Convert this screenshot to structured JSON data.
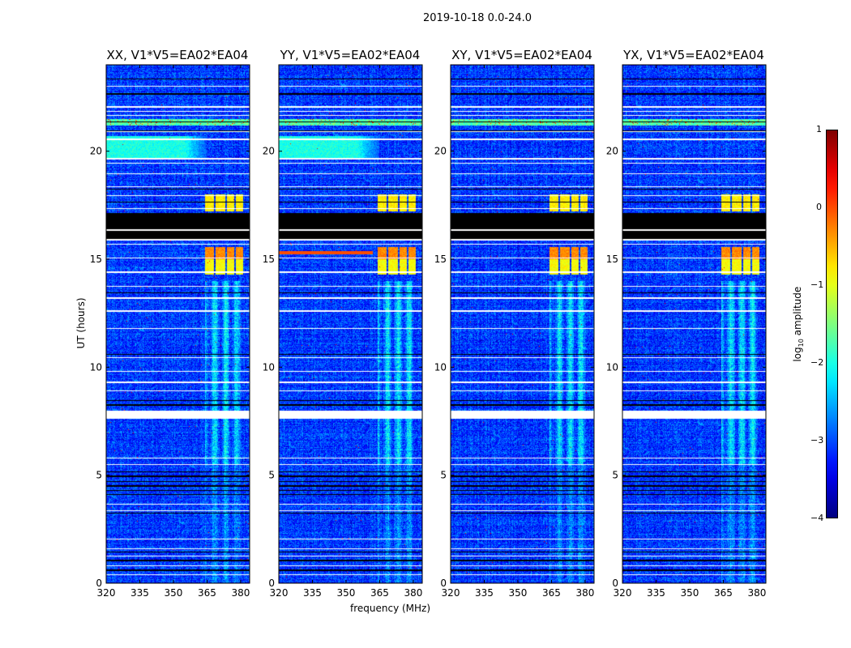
{
  "chart_data": {
    "type": "heatmap",
    "title": "2019-10-18 0.0-24.0",
    "xlabel": "frequency (MHz)",
    "ylabel": "UT (hours)",
    "xlim": [
      320,
      384
    ],
    "ylim": [
      0,
      24
    ],
    "xticks": [
      320,
      335,
      350,
      365,
      380
    ],
    "yticks": [
      0,
      5,
      10,
      15,
      20
    ],
    "panels": [
      {
        "title": "XX, V1*V5=EA02*EA04",
        "low_freq_band": true,
        "red_strip": false
      },
      {
        "title": "YY, V1*V5=EA02*EA04",
        "low_freq_band": true,
        "red_strip": true
      },
      {
        "title": "XY, V1*V5=EA02*EA04",
        "low_freq_band": false,
        "red_strip": false
      },
      {
        "title": "YX, V1*V5=EA02*EA04",
        "low_freq_band": false,
        "red_strip": false
      }
    ],
    "colorbar": {
      "label_main": "log",
      "label_sub": "10",
      "label_tail": " amplitude",
      "range": [
        -4,
        1
      ],
      "ticks": [
        "1",
        "0",
        "−1",
        "−2",
        "−3",
        "−4"
      ],
      "tick_values": [
        1,
        0,
        -1,
        -2,
        -3,
        -4
      ],
      "colormap": "jet"
    },
    "background_level": -3.1,
    "flagged_white_hours": [
      23.0,
      22.05,
      21.85,
      21.65,
      20.9,
      20.55,
      19.65,
      19.45,
      18.95,
      18.35,
      17.95,
      17.35,
      15.7,
      15.05,
      14.4,
      13.75,
      13.2,
      12.6,
      11.8,
      10.45,
      9.8,
      9.3,
      8.9,
      5.8,
      5.5,
      3.65,
      3.35,
      2.05,
      1.6,
      1.25,
      0.8,
      0.4
    ],
    "flagged_white_ranges": [
      [
        7.6,
        8.0
      ],
      [
        16.3,
        16.4
      ],
      [
        15.85,
        15.95
      ]
    ],
    "flagged_black_hours": [
      23.35,
      22.65,
      21.35,
      20.95,
      18.25,
      17.65,
      13.45,
      10.6,
      8.45,
      8.25,
      5.15,
      4.95,
      4.7,
      4.5,
      4.3,
      4.1,
      3.25,
      1.45,
      1.05,
      0.6
    ],
    "flagged_black_ranges": [
      [
        15.9,
        17.15
      ]
    ],
    "rfi_rows_hours": [
      21.2,
      21.5
    ],
    "rfi_row_level": -1.7,
    "high_blocks": [
      {
        "hours": [
          17.2,
          18.0
        ],
        "freq": [
          364,
          381
        ],
        "level": -0.8
      },
      {
        "hours": [
          15.0,
          15.55
        ],
        "freq": [
          364,
          381
        ],
        "level": -0.3
      },
      {
        "hours": [
          14.3,
          15.0
        ],
        "freq": [
          364,
          381
        ],
        "level": -0.9
      }
    ],
    "block_gaps_mhz": [
      368.5,
      373.5,
      377.5
    ],
    "stripe_region": {
      "freq": [
        364,
        381
      ],
      "hours": [
        0,
        14
      ],
      "level": -2.2
    },
    "low_freq_band": {
      "hours": [
        19.7,
        20.7
      ],
      "freq": [
        320,
        355
      ],
      "level": -2.0
    }
  }
}
